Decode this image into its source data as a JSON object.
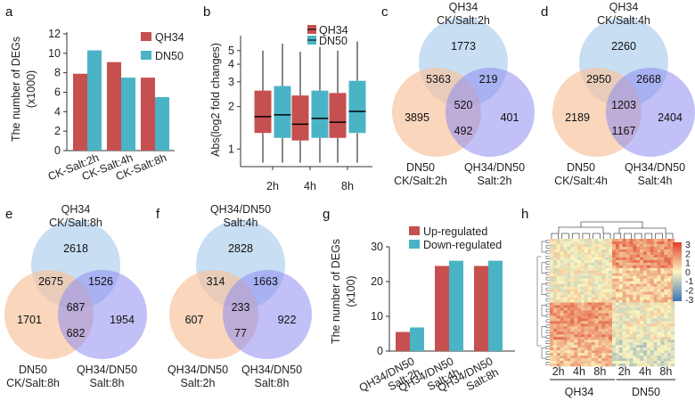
{
  "colors": {
    "qh34": "#c6504f",
    "dn50": "#4ab4c6",
    "up": "#c6504f",
    "down": "#4ab4c6",
    "venn_top": "#b4d3ef",
    "venn_left": "#f6c49f",
    "venn_right": "#8e8cf0"
  },
  "panels": {
    "a": "a",
    "b": "b",
    "c": "c",
    "d": "d",
    "e": "e",
    "f": "f",
    "g": "g",
    "h": "h"
  },
  "chart_data": [
    {
      "panel": "a",
      "type": "bar",
      "ylabel_line1": "The number of DEGs",
      "ylabel_line2": "(x1000)",
      "yticks": [
        "0",
        "2",
        "4",
        "6",
        "8",
        "10",
        "12"
      ],
      "ylim": [
        0,
        12
      ],
      "categories": [
        "CK-Salt:2h",
        "CK-Salt:4h",
        "CK-Salt:8h"
      ],
      "series": [
        {
          "name": "QH34",
          "values": [
            7.9,
            9.1,
            7.5
          ]
        },
        {
          "name": "DN50",
          "values": [
            10.3,
            7.5,
            5.5
          ]
        }
      ]
    },
    {
      "panel": "b",
      "type": "box",
      "ylabel": "Abs(log2 fold changes)",
      "yticks": [
        "1",
        "2",
        "3",
        "4",
        "5"
      ],
      "categories": [
        "2h",
        "4h",
        "8h"
      ],
      "legend": [
        "QH34",
        "DN50"
      ],
      "boxes": [
        {
          "cat": "2h",
          "series": "QH34",
          "q1": 1.3,
          "median": 1.7,
          "q3": 2.6,
          "lo": 0.8,
          "hi": 5.0
        },
        {
          "cat": "2h",
          "series": "DN50",
          "q1": 1.2,
          "median": 1.75,
          "q3": 2.8,
          "lo": 0.8,
          "hi": 5.6
        },
        {
          "cat": "4h",
          "series": "QH34",
          "q1": 1.15,
          "median": 1.5,
          "q3": 2.4,
          "lo": 0.8,
          "hi": 4.9
        },
        {
          "cat": "4h",
          "series": "DN50",
          "q1": 1.2,
          "median": 1.65,
          "q3": 2.6,
          "lo": 0.8,
          "hi": 5.3
        },
        {
          "cat": "8h",
          "series": "QH34",
          "q1": 1.2,
          "median": 1.55,
          "q3": 2.5,
          "lo": 0.8,
          "hi": 5.0
        },
        {
          "cat": "8h",
          "series": "DN50",
          "q1": 1.3,
          "median": 1.85,
          "q3": 3.05,
          "lo": 0.8,
          "hi": 5.8
        }
      ]
    },
    {
      "panel": "g",
      "type": "bar",
      "ylabel_line1": "The number of DEGs",
      "ylabel_line2": "(x100)",
      "yticks": [
        "0",
        "10",
        "20",
        "30"
      ],
      "ylim": [
        0,
        30
      ],
      "categories": [
        "QH34/DN50 Salt:2h",
        "QH34/DN50 Salt:4h",
        "QH34/DN50 Salt:8h"
      ],
      "series": [
        {
          "name": "Up-regulated",
          "values": [
            5.5,
            24.5,
            24.5
          ]
        },
        {
          "name": "Down-regulated",
          "values": [
            6.8,
            26.0,
            26.0
          ]
        }
      ]
    },
    {
      "panel": "h",
      "type": "heatmap",
      "scale_ticks": [
        "3",
        "2",
        "1",
        "0",
        "-1",
        "-2",
        "-3"
      ],
      "time_labels": [
        "2h",
        "4h",
        "8h",
        "2h",
        "4h",
        "8h"
      ],
      "groups": [
        "QH34",
        "DN50"
      ]
    }
  ],
  "venns": [
    {
      "panel": "c",
      "top": [
        "QH34",
        "CK/Salt:2h"
      ],
      "left": [
        "DN50",
        "CK/Salt:2h"
      ],
      "right": [
        "QH34/DN50",
        "Salt:2h"
      ],
      "counts": {
        "t": "1773",
        "l": "3895",
        "r": "401",
        "tl": "5363",
        "tr": "219",
        "lr": "492",
        "c": "520"
      }
    },
    {
      "panel": "d",
      "top": [
        "QH34",
        "CK/Salt:4h"
      ],
      "left": [
        "DN50",
        "CK/Salt:4h"
      ],
      "right": [
        "QH34/DN50",
        "Salt:4h"
      ],
      "counts": {
        "t": "2260",
        "l": "2189",
        "r": "2404",
        "tl": "2950",
        "tr": "2668",
        "lr": "1167",
        "c": "1203"
      }
    },
    {
      "panel": "e",
      "top": [
        "QH34",
        "CK/Salt:8h"
      ],
      "left": [
        "DN50",
        "CK/Salt:8h"
      ],
      "right": [
        "QH34/DN50",
        "Salt:8h"
      ],
      "counts": {
        "t": "2618",
        "l": "1701",
        "r": "1954",
        "tl": "2675",
        "tr": "1526",
        "lr": "682",
        "c": "687"
      }
    },
    {
      "panel": "f",
      "top": [
        "QH34/DN50",
        "Salt:4h"
      ],
      "left": [
        "QH34/DN50",
        "Salt:2h"
      ],
      "right": [
        "QH34/DN50",
        "Salt:8h"
      ],
      "counts": {
        "t": "2828",
        "l": "607",
        "r": "922",
        "tl": "314",
        "tr": "1663",
        "lr": "77",
        "c": "233"
      }
    }
  ]
}
